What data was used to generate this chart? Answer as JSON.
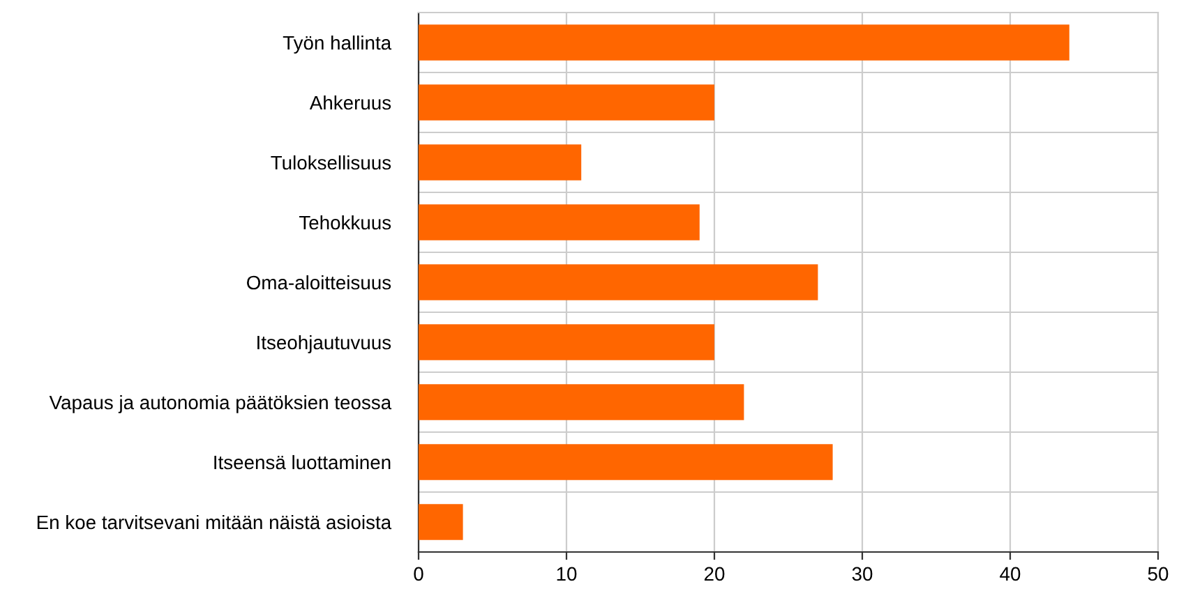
{
  "chart_data": {
    "type": "bar",
    "orientation": "horizontal",
    "categories": [
      "Työn hallinta",
      "Ahkeruus",
      "Tuloksellisuus",
      "Tehokkuus",
      "Oma-aloitteisuus",
      "Itseohjautuvuus",
      "Vapaus ja autonomia päätöksien teossa",
      "Itseensä luottaminen",
      "En koe tarvitsevani mitään näistä asioista"
    ],
    "values": [
      44,
      20,
      11,
      19,
      27,
      20,
      22,
      28,
      3
    ],
    "color": "#ff6600",
    "xlim": [
      0,
      50
    ],
    "xticks": [
      0,
      10,
      20,
      30,
      40,
      50
    ],
    "grid": true
  }
}
